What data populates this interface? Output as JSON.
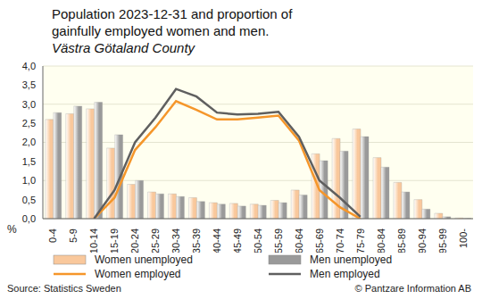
{
  "chart_data": {
    "type": "bar",
    "title": "Population 2023-12-31 and proportion of gainfully employed women and men.",
    "subtitle": "Västra Götaland County",
    "ylabel": "%",
    "source": "Source: Statistics Sweden",
    "copyright": "© Pantzare Information AB",
    "categories": [
      "0-4",
      "5-9",
      "10-14",
      "15-19",
      "20-24",
      "25-29",
      "30-34",
      "35-39",
      "40-44",
      "45-49",
      "50-54",
      "55-59",
      "60-64",
      "65-69",
      "70-74",
      "75-79",
      "80-84",
      "85-89",
      "90-94",
      "95-99",
      "100-"
    ],
    "series": [
      {
        "name": "Women unemployed",
        "type": "bar",
        "color": "#f9c89c",
        "values": [
          2.6,
          2.75,
          2.88,
          1.85,
          0.9,
          0.7,
          0.65,
          0.55,
          0.42,
          0.4,
          0.38,
          0.48,
          0.75,
          1.7,
          2.1,
          2.35,
          1.6,
          0.95,
          0.5,
          0.14,
          0.02
        ]
      },
      {
        "name": "Men unemployed",
        "type": "bar",
        "color": "#9a9a9a",
        "values": [
          2.78,
          2.95,
          3.05,
          2.2,
          1.0,
          0.65,
          0.58,
          0.45,
          0.38,
          0.33,
          0.35,
          0.42,
          0.62,
          1.52,
          1.77,
          2.15,
          1.35,
          0.7,
          0.25,
          0.05,
          0.01
        ]
      },
      {
        "name": "Women employed",
        "type": "line",
        "color": "#f5962a",
        "values": [
          null,
          null,
          0.0,
          0.55,
          1.8,
          2.4,
          3.08,
          2.85,
          2.6,
          2.6,
          2.65,
          2.7,
          2.05,
          0.75,
          0.3,
          0.0,
          null,
          null,
          null,
          null,
          null
        ]
      },
      {
        "name": "Men employed",
        "type": "line",
        "color": "#5f5f5f",
        "values": [
          null,
          null,
          0.0,
          0.75,
          2.0,
          2.65,
          3.4,
          3.2,
          2.78,
          2.73,
          2.75,
          2.8,
          2.15,
          1.0,
          0.55,
          0.05,
          null,
          null,
          null,
          null,
          null
        ]
      }
    ],
    "ylim": [
      0,
      4
    ],
    "yticks": [
      {
        "value": 0,
        "label": "0,0"
      },
      {
        "value": 0.5,
        "label": "0,5"
      },
      {
        "value": 1,
        "label": "1,0"
      },
      {
        "value": 1.5,
        "label": "1,5"
      },
      {
        "value": 2,
        "label": "2,0"
      },
      {
        "value": 2.5,
        "label": "2,5"
      },
      {
        "value": 3,
        "label": "3,0"
      },
      {
        "value": 3.5,
        "label": "3,5"
      },
      {
        "value": 4,
        "label": "4,0"
      }
    ],
    "grid": true,
    "legend": "bottom"
  }
}
